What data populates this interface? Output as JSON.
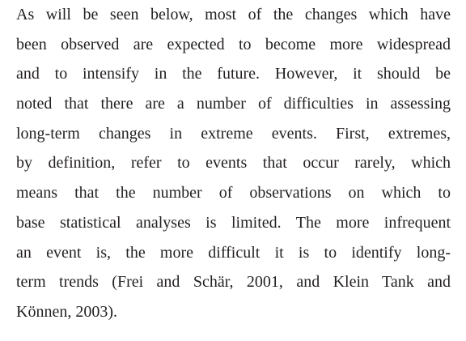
{
  "paragraph": {
    "lines": [
      "As will be seen below, most of the changes which have",
      "been observed are expected to become more widespread",
      "and to intensify in the future. However, it should be",
      "noted that there are a number of difficulties in assessing",
      "long-term changes in extreme events. First, extremes,",
      "by definition, refer to events that occur rarely, which",
      "means that the number of observations on which to",
      "base statistical analyses is limited. The more infrequent",
      "an event is, the more difficult it is to identify long-",
      "term trends (Frei and Schär, 2001, and Klein Tank and",
      "Können, 2003)."
    ]
  }
}
